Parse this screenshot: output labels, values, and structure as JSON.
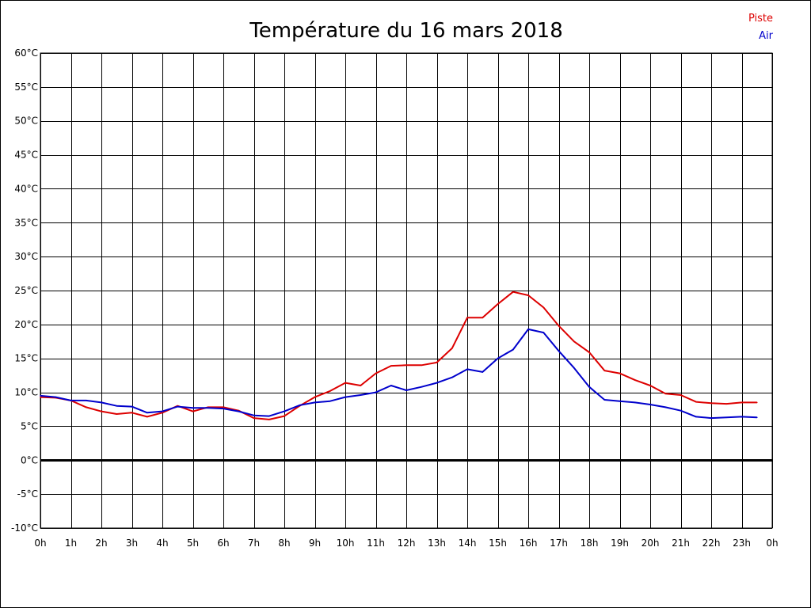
{
  "chart_data": {
    "type": "line",
    "title": "Température du 16 mars 2018",
    "xlabel": "",
    "ylabel": "",
    "grid": true,
    "legend_position": "top-right",
    "x_range": [
      0,
      24
    ],
    "y_range": [
      -10,
      60
    ],
    "x_ticks": [
      0,
      1,
      2,
      3,
      4,
      5,
      6,
      7,
      8,
      9,
      10,
      11,
      12,
      13,
      14,
      15,
      16,
      17,
      18,
      19,
      20,
      21,
      22,
      23,
      24
    ],
    "x_tick_labels": [
      "0h",
      "1h",
      "2h",
      "3h",
      "4h",
      "5h",
      "6h",
      "7h",
      "8h",
      "9h",
      "10h",
      "11h",
      "12h",
      "13h",
      "14h",
      "15h",
      "16h",
      "17h",
      "18h",
      "19h",
      "20h",
      "21h",
      "22h",
      "23h",
      "0h"
    ],
    "y_ticks": [
      -10,
      -5,
      0,
      5,
      10,
      15,
      20,
      25,
      30,
      35,
      40,
      45,
      50,
      55,
      60
    ],
    "y_tick_labels": [
      "-10°C",
      "-5°C",
      "0°C",
      "5°C",
      "10°C",
      "15°C",
      "20°C",
      "25°C",
      "30°C",
      "35°C",
      "40°C",
      "45°C",
      "50°C",
      "55°C",
      "60°C"
    ],
    "zero_line": 0,
    "x": [
      0,
      0.5,
      1,
      1.5,
      2,
      2.5,
      3,
      3.5,
      4,
      4.5,
      5,
      5.5,
      6,
      6.5,
      7,
      7.5,
      8,
      8.5,
      9,
      9.5,
      10,
      10.5,
      11,
      11.5,
      12,
      12.5,
      13,
      13.5,
      14,
      14.5,
      15,
      15.5,
      16,
      16.5,
      17,
      17.5,
      18,
      18.5,
      19,
      19.5,
      20,
      20.5,
      21,
      21.5,
      22,
      22.5,
      23,
      23.5
    ],
    "series": [
      {
        "name": "Piste",
        "color": "#dd0000",
        "values": [
          9.3,
          9.2,
          8.8,
          7.8,
          7.2,
          6.8,
          7.0,
          6.4,
          7.0,
          8.0,
          7.2,
          7.8,
          7.8,
          7.3,
          6.2,
          6.0,
          6.5,
          8.0,
          9.3,
          10.2,
          11.4,
          11.0,
          12.8,
          13.9,
          14.0,
          14.0,
          14.4,
          16.5,
          21.0,
          21.0,
          23.0,
          24.8,
          24.3,
          22.5,
          19.8,
          17.5,
          15.9,
          13.2,
          12.8,
          11.8,
          11.0,
          9.8,
          9.6,
          8.6,
          8.4,
          8.3,
          8.5,
          8.5
        ]
      },
      {
        "name": "Air",
        "color": "#0000cc",
        "values": [
          9.5,
          9.3,
          8.8,
          8.8,
          8.5,
          8.0,
          7.9,
          7.0,
          7.2,
          7.9,
          7.7,
          7.7,
          7.6,
          7.2,
          6.6,
          6.5,
          7.2,
          8.1,
          8.5,
          8.7,
          9.3,
          9.6,
          10.0,
          11.0,
          10.3,
          10.8,
          11.4,
          12.2,
          13.4,
          13.0,
          15.0,
          16.3,
          19.3,
          18.8,
          16.1,
          13.6,
          10.8,
          8.9,
          8.7,
          8.5,
          8.2,
          7.8,
          7.3,
          6.4,
          6.2,
          6.3,
          6.4,
          6.3
        ]
      }
    ]
  }
}
